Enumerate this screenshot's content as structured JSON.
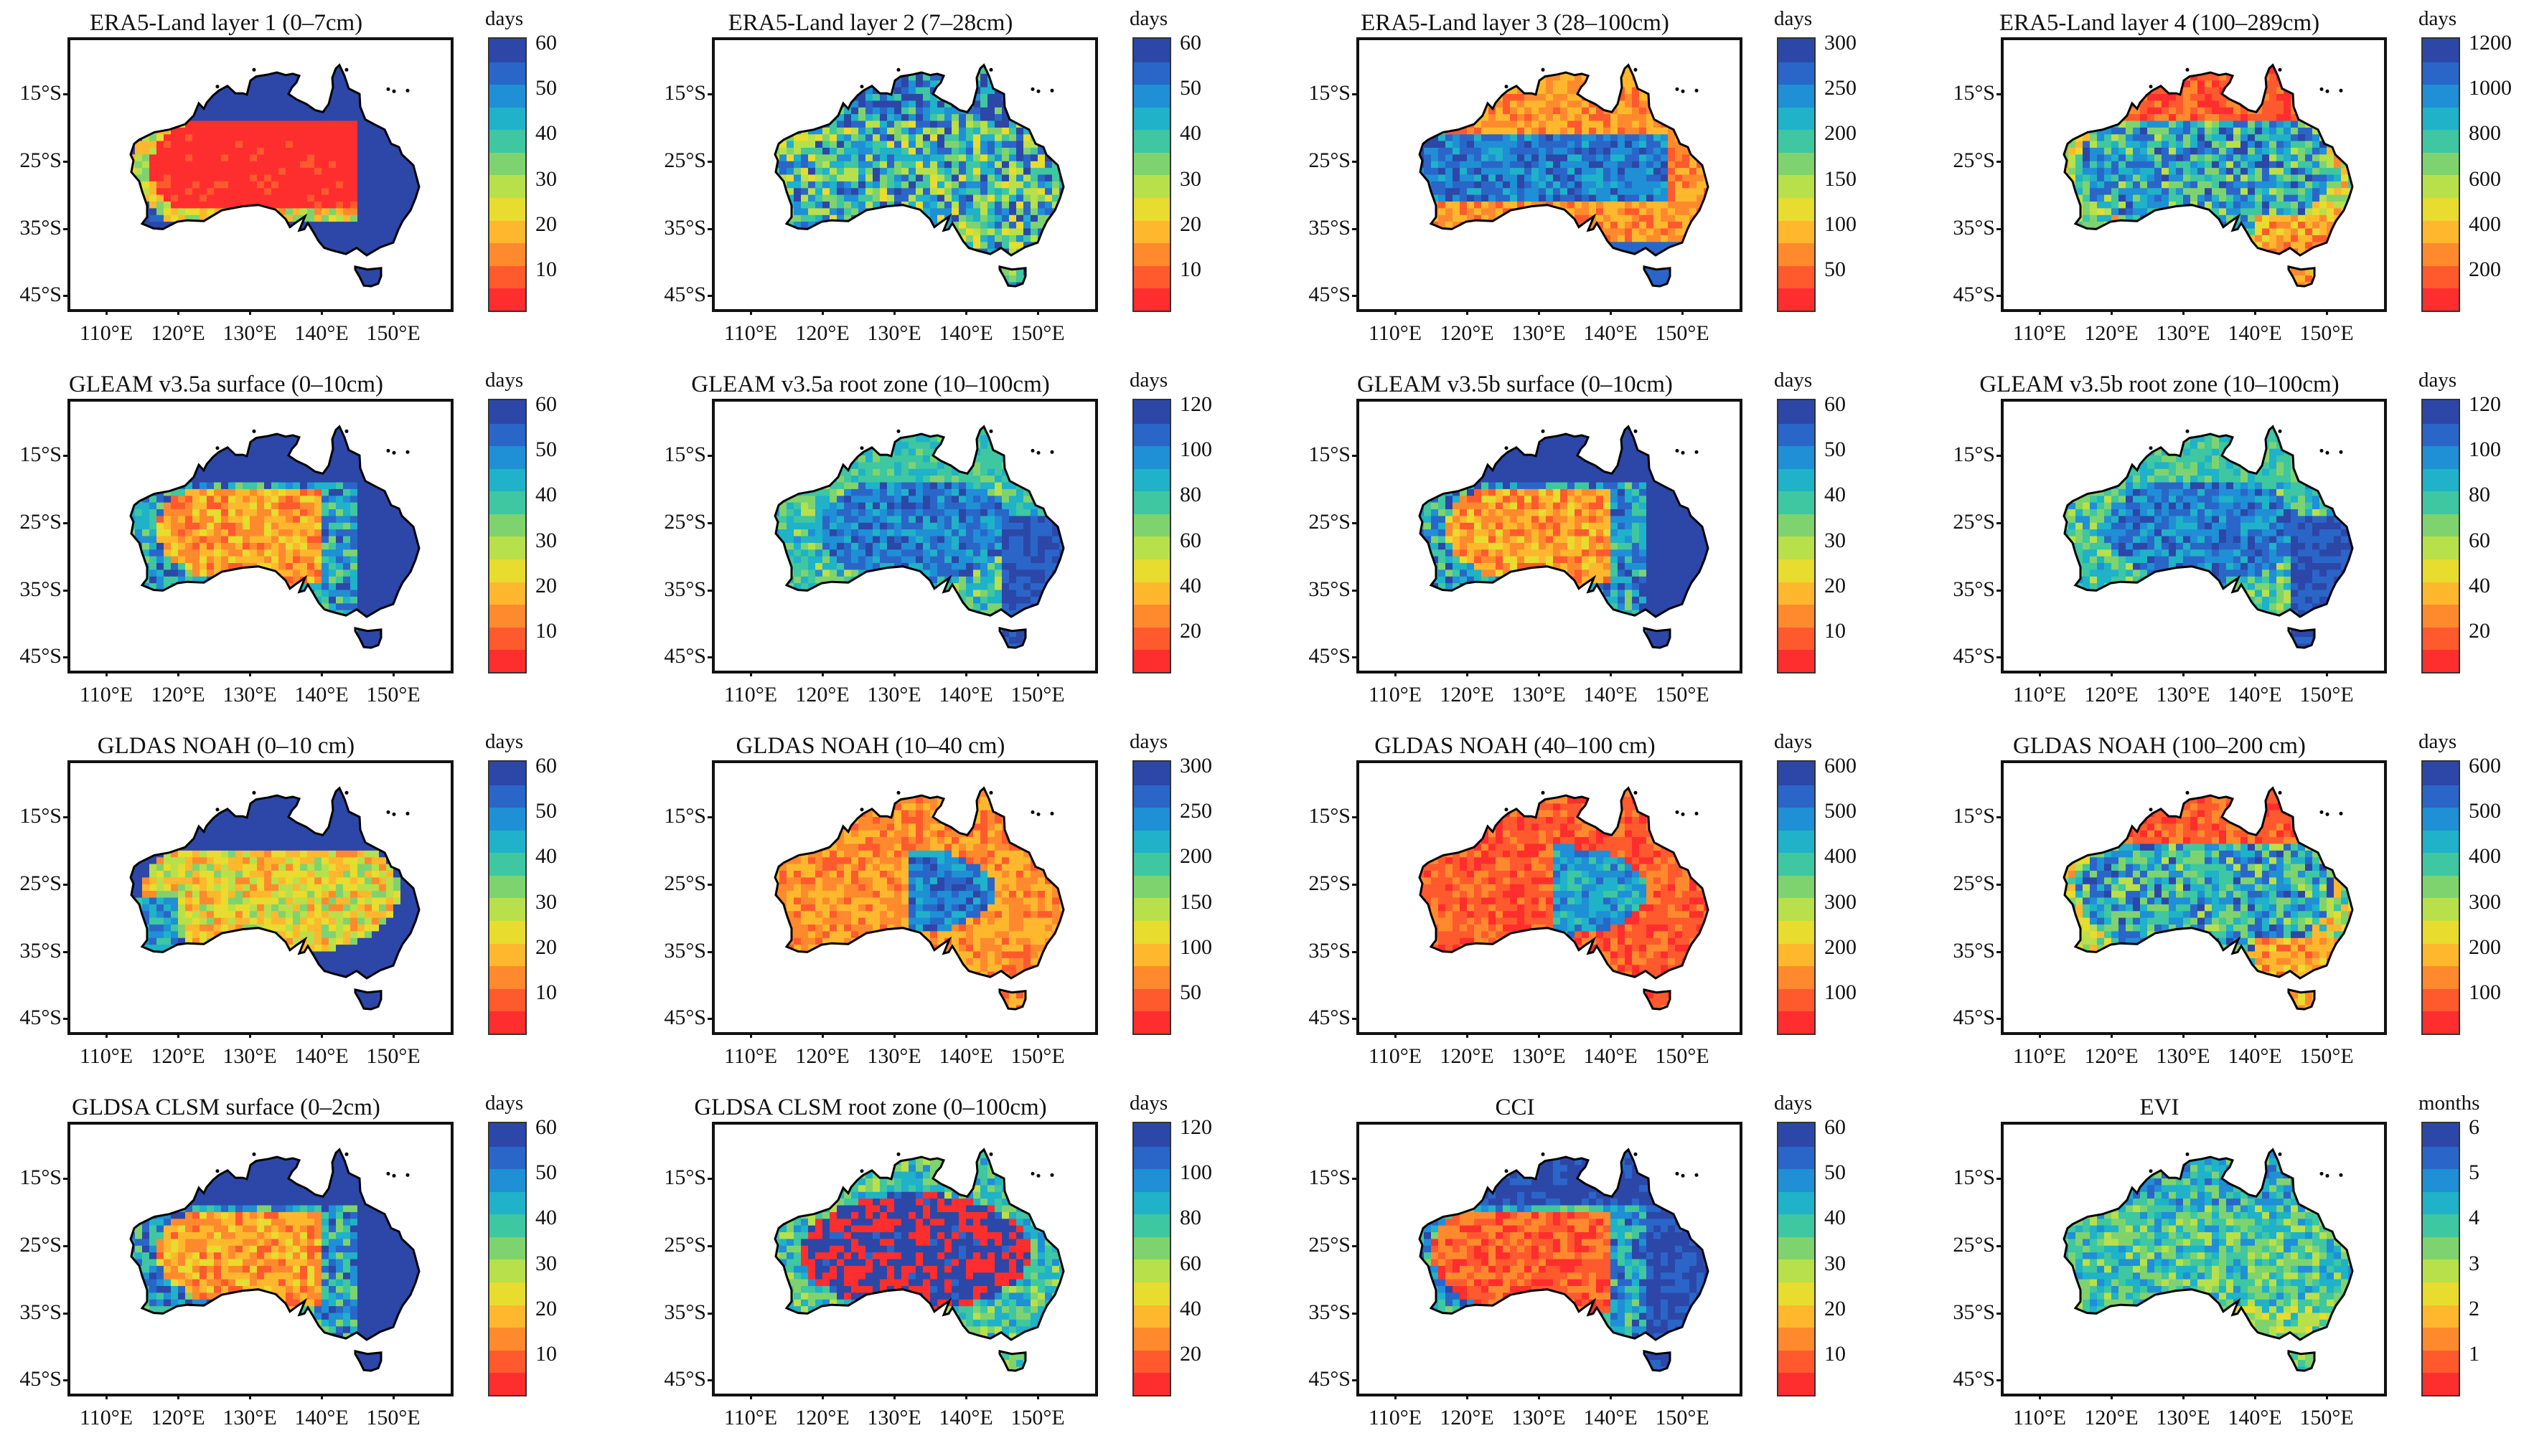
{
  "figure": {
    "lat_ticks": [
      "15°S",
      "25°S",
      "35°S",
      "45°S"
    ],
    "lon_ticks": [
      "110°E",
      "120°E",
      "130°E",
      "140°E",
      "150°E"
    ],
    "colormap": [
      "#ff2e2e",
      "#ff5a2e",
      "#ff8a2e",
      "#ffb82e",
      "#e8dc2e",
      "#b8e04a",
      "#7fd36e",
      "#3ec7a0",
      "#1fb2c8",
      "#1f8fd6",
      "#2a66c8",
      "#2c47a8"
    ],
    "land_outline": "#000000"
  },
  "panels": [
    {
      "title": "ERA5-Land layer 1 (0–7cm)",
      "unit": "days",
      "ticks": [
        "60",
        "50",
        "40",
        "30",
        "20",
        "10"
      ],
      "pattern": "era1"
    },
    {
      "title": "ERA5-Land layer 2 (7–28cm)",
      "unit": "days",
      "ticks": [
        "60",
        "50",
        "40",
        "30",
        "20",
        "10"
      ],
      "pattern": "mixed_blue"
    },
    {
      "title": "ERA5-Land layer 3 (28–100cm)",
      "unit": "days",
      "ticks": [
        "300",
        "250",
        "200",
        "150",
        "100",
        "50"
      ],
      "pattern": "era3"
    },
    {
      "title": "ERA5-Land layer 4 (100–289cm)",
      "unit": "days",
      "ticks": [
        "1200",
        "1000",
        "800",
        "600",
        "400",
        "200"
      ],
      "pattern": "era4"
    },
    {
      "title": "GLEAM v3.5a surface (0–10cm)",
      "unit": "days",
      "ticks": [
        "60",
        "50",
        "40",
        "30",
        "20",
        "10"
      ],
      "pattern": "gleam_s"
    },
    {
      "title": "GLEAM v3.5a root zone (10–100cm)",
      "unit": "days",
      "ticks": [
        "120",
        "100",
        "80",
        "60",
        "40",
        "20"
      ],
      "pattern": "gleam_r"
    },
    {
      "title": "GLEAM v3.5b surface (0–10cm)",
      "unit": "days",
      "ticks": [
        "60",
        "50",
        "40",
        "30",
        "20",
        "10"
      ],
      "pattern": "gleam_s"
    },
    {
      "title": "GLEAM v3.5b root zone (10–100cm)",
      "unit": "days",
      "ticks": [
        "120",
        "100",
        "80",
        "60",
        "40",
        "20"
      ],
      "pattern": "gleam_r"
    },
    {
      "title": "GLDAS NOAH (0–10 cm)",
      "unit": "days",
      "ticks": [
        "60",
        "50",
        "40",
        "30",
        "20",
        "10"
      ],
      "pattern": "noah1"
    },
    {
      "title": "GLDAS NOAH (10–40 cm)",
      "unit": "days",
      "ticks": [
        "300",
        "250",
        "200",
        "150",
        "100",
        "50"
      ],
      "pattern": "noah2"
    },
    {
      "title": "GLDAS NOAH (40–100 cm)",
      "unit": "days",
      "ticks": [
        "600",
        "500",
        "400",
        "300",
        "200",
        "100"
      ],
      "pattern": "noah3"
    },
    {
      "title": "GLDAS NOAH (100–200 cm)",
      "unit": "days",
      "ticks": [
        "600",
        "500",
        "400",
        "300",
        "200",
        "100"
      ],
      "pattern": "era4"
    },
    {
      "title": "GLDSA CLSM surface (0–2cm)",
      "unit": "days",
      "ticks": [
        "60",
        "50",
        "40",
        "30",
        "20",
        "10"
      ],
      "pattern": "gleam_s"
    },
    {
      "title": "GLDSA CLSM root zone (0–100cm)",
      "unit": "days",
      "ticks": [
        "120",
        "100",
        "80",
        "60",
        "40",
        "20"
      ],
      "pattern": "clsm_r"
    },
    {
      "title": "CCI",
      "unit": "days",
      "ticks": [
        "60",
        "50",
        "40",
        "30",
        "20",
        "10"
      ],
      "pattern": "cci"
    },
    {
      "title": "EVI",
      "unit": "months",
      "ticks": [
        "6",
        "5",
        "4",
        "3",
        "2",
        "1"
      ],
      "pattern": "evi"
    }
  ]
}
